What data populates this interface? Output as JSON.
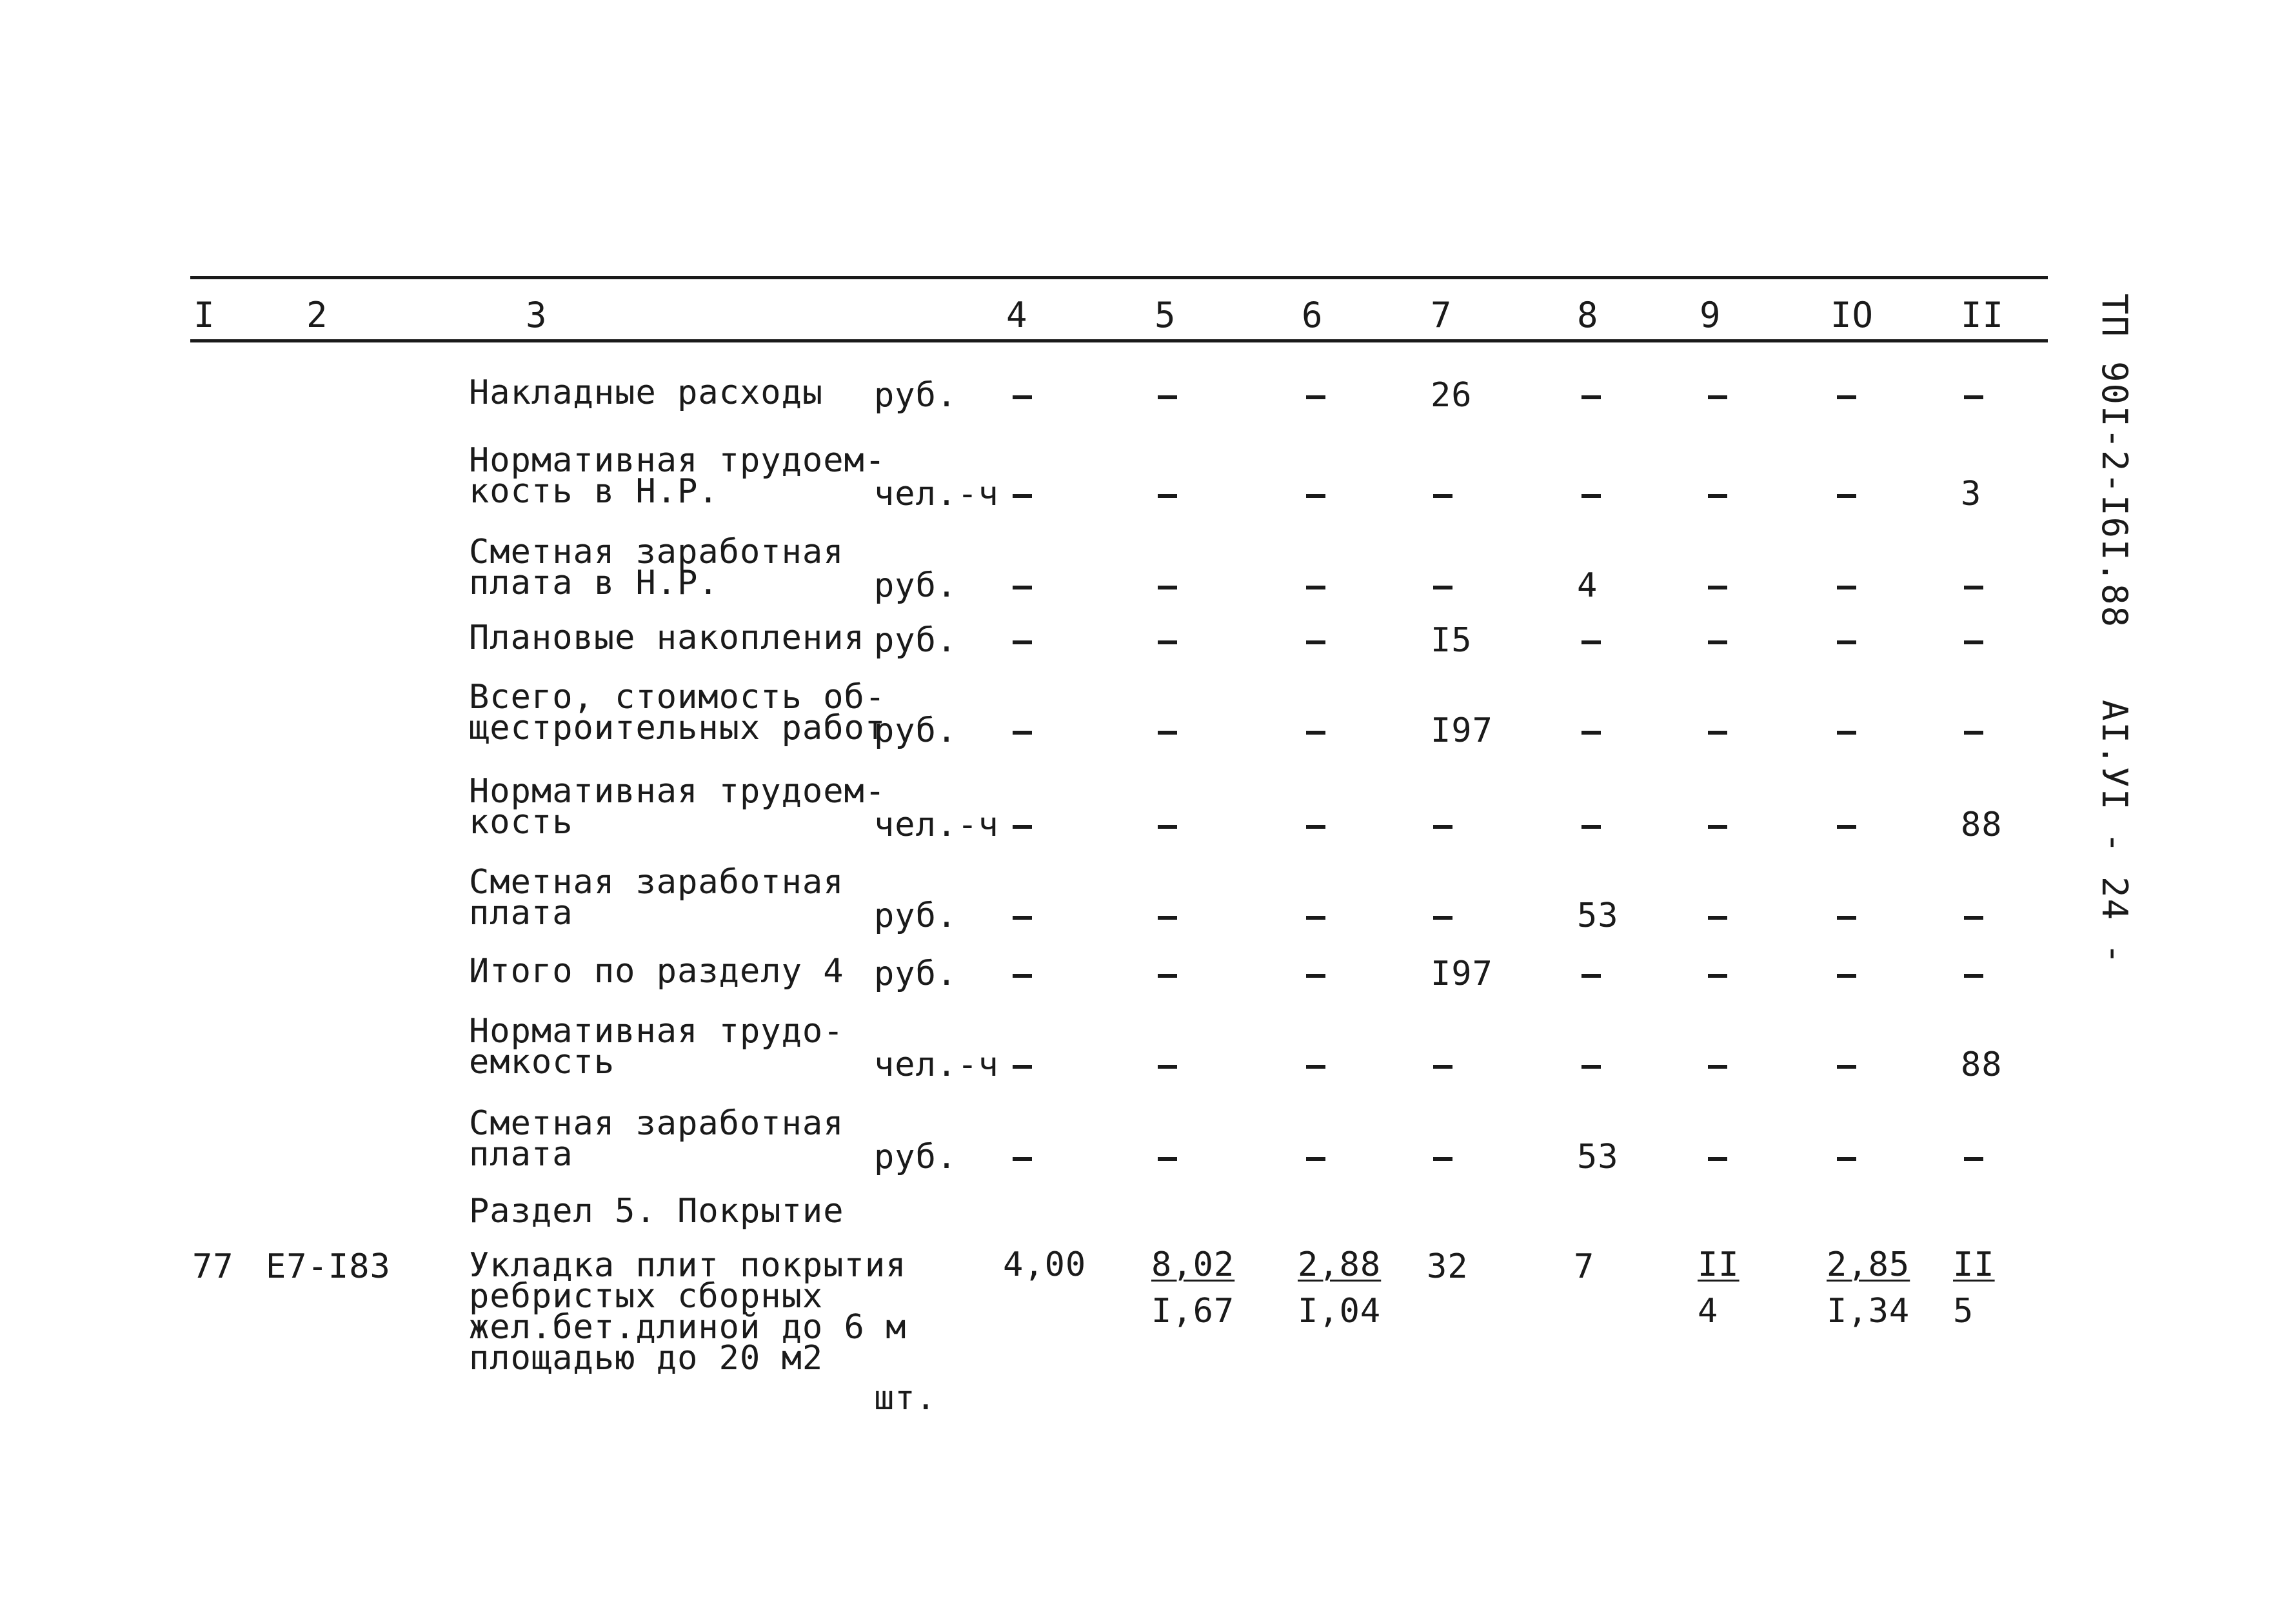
{
  "header": {
    "columns": [
      "I",
      "2",
      "3",
      "4",
      "5",
      "6",
      "7",
      "8",
      "9",
      "IO",
      "II"
    ]
  },
  "side_code": {
    "part1": "ТП",
    "part2": "90I-2-I6I.88",
    "part3": "АI.УI",
    "part4": "- 24 -"
  },
  "rows": [
    {
      "desc": "Накладные расходы",
      "unit": "руб.",
      "c7": "26"
    },
    {
      "desc": "Нормативная трудоем-\nкость в Н.Р.",
      "unit": "чел.-ч",
      "c11": "3"
    },
    {
      "desc": "Сметная заработная\nплата в Н.Р.",
      "unit": "руб.",
      "c8": "4"
    },
    {
      "desc": "Плановые накопления",
      "unit": "руб.",
      "c7": "I5"
    },
    {
      "desc": "Всего, стоимость об-\nщестроительных работ",
      "unit": "руб.",
      "c7": "I97"
    },
    {
      "desc": "Нормативная трудоем-\nкость",
      "unit": "чел.-ч",
      "c11": "88"
    },
    {
      "desc": "Сметная заработная\nплата",
      "unit": "руб.",
      "c8": "53"
    },
    {
      "desc": "Итого по разделу 4",
      "unit": "руб.",
      "c7": "I97"
    },
    {
      "desc": "Нормативная трудо-\nемкость",
      "unit": "чел.-ч",
      "c11": "88"
    },
    {
      "desc": "Сметная заработная\nплата",
      "unit": "руб.",
      "c8": "53"
    }
  ],
  "section": {
    "title": "Раздел 5. Покрытие"
  },
  "item77": {
    "num": "77",
    "code": "Е7-I83",
    "desc": "Укладка плит покрытия\nребристых сборных\nжел.бет.длиной до 6 м\nплощадью до 20 м2",
    "unit": "шт.",
    "c4": "4,00",
    "c5_top": "8,02",
    "c5_bot": "I,67",
    "c6_top": "2,88",
    "c6_bot": "I,04",
    "c7": "32",
    "c8": "7",
    "c9_top": "II",
    "c9_bot": "4",
    "c10_top": "2,85",
    "c10_bot": "I,34",
    "c11_top": "II",
    "c11_bot": "5"
  }
}
